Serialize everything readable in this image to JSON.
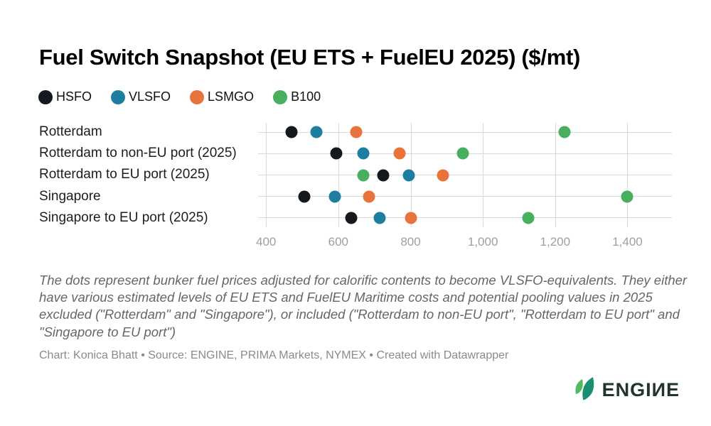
{
  "title": "Fuel Switch Snapshot (EU ETS + FuelEU 2025) ($/mt)",
  "legend": [
    {
      "label": "HSFO",
      "color": "#15181d"
    },
    {
      "label": "VLSFO",
      "color": "#1d7ea0"
    },
    {
      "label": "LSMGO",
      "color": "#e8743c"
    },
    {
      "label": "B100",
      "color": "#47af5e"
    }
  ],
  "chart_data": {
    "type": "scatter",
    "title": "Fuel Switch Snapshot (EU ETS + FuelEU 2025) ($/mt)",
    "unit": "$/mt",
    "categories": [
      "Rotterdam",
      "Rotterdam to non-EU port (2025)",
      "Rotterdam to EU port (2025)",
      "Singapore",
      "Singapore to EU port (2025)"
    ],
    "series": [
      {
        "name": "HSFO",
        "color": "#15181d",
        "values": [
          470,
          595,
          725,
          505,
          635
        ]
      },
      {
        "name": "VLSFO",
        "color": "#1d7ea0",
        "values": [
          540,
          670,
          795,
          590,
          715
        ]
      },
      {
        "name": "LSMGO",
        "color": "#e8743c",
        "values": [
          650,
          770,
          890,
          685,
          800
        ]
      },
      {
        "name": "B100",
        "color": "#47af5e",
        "values": [
          1225,
          945,
          670,
          1400,
          1125
        ]
      }
    ],
    "xlim": [
      378,
      1523
    ],
    "x_ticks": [
      {
        "value": 400,
        "label": "400"
      },
      {
        "value": 600,
        "label": "600"
      },
      {
        "value": 800,
        "label": "800"
      },
      {
        "value": 1000,
        "label": "1,000"
      },
      {
        "value": 1200,
        "label": "1,200"
      },
      {
        "value": 1400,
        "label": "1,400"
      }
    ],
    "grid": true,
    "legend_position": "top"
  },
  "notes": "The dots represent bunker fuel prices adjusted for calorific contents to become VLSFO-equivalents. They either have various estimated levels of EU ETS and FuelEU Maritime costs and potential pooling values in 2025 excluded (\"Rotterdam\" and \"Singapore\"), or included (\"Rotterdam to non-EU port\", \"Rotterdam to EU port\" and \"Singapore to EU port\")",
  "credit": "Chart: Konica Bhatt • Source: ENGINE, PRIMA Markets, NYMEX • Created with Datawrapper",
  "logo": {
    "text": "ENGIИE",
    "icon_green": "#55b963",
    "icon_teal": "#1b8f74"
  }
}
